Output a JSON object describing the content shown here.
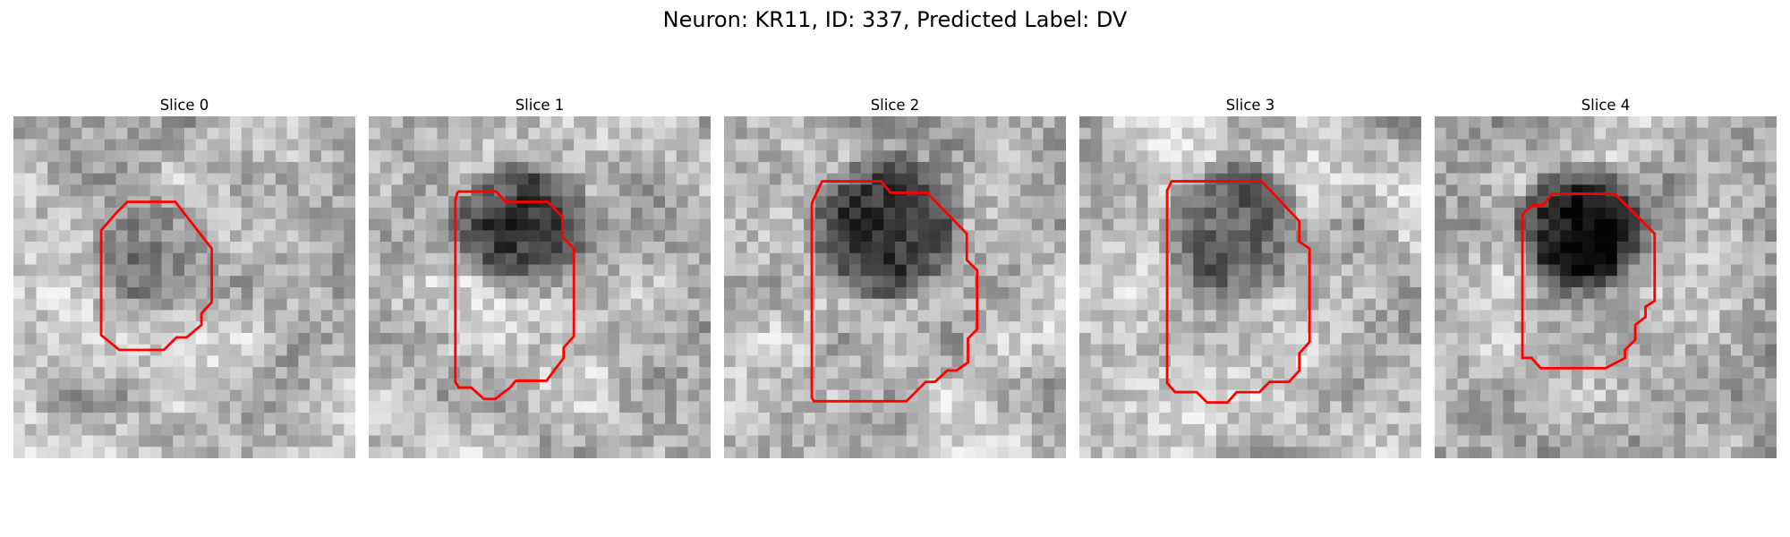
{
  "figure": {
    "title": "Neuron: KR11, ID: 337, Predicted Label: DV",
    "outline_color": "#ff0000"
  },
  "panels": [
    {
      "title": "Slice 0",
      "seed": 11,
      "blob": {
        "cx": 12.5,
        "cy": 11.8,
        "r": 6.2,
        "depth": 0.16
      }
    },
    {
      "title": "Slice 1",
      "seed": 23,
      "blob": {
        "cx": 13.4,
        "cy": 9.8,
        "r": 6.5,
        "depth": 0.52
      }
    },
    {
      "title": "Slice 2",
      "seed": 37,
      "blob": {
        "cx": 14.0,
        "cy": 9.8,
        "r": 7.2,
        "depth": 0.62
      }
    },
    {
      "title": "Slice 3",
      "seed": 41,
      "blob": {
        "cx": 13.4,
        "cy": 10.0,
        "r": 6.8,
        "depth": 0.48
      }
    },
    {
      "title": "Slice 4",
      "seed": 53,
      "blob": {
        "cx": 12.8,
        "cy": 9.8,
        "r": 6.2,
        "depth": 0.72
      }
    }
  ]
}
